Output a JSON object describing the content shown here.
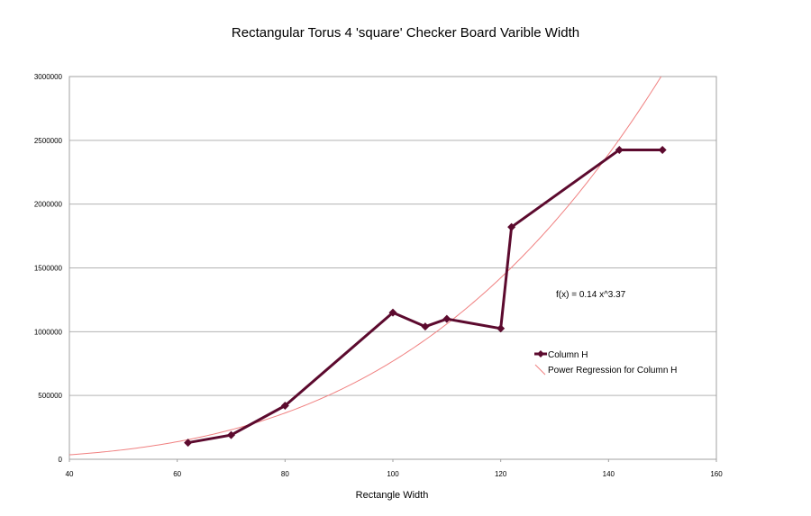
{
  "chart_data": {
    "type": "line",
    "title": "Rectangular Torus 4 'square' Checker Board Varible Width",
    "xlabel": "Rectangle Width",
    "ylabel": "",
    "xlim": [
      40,
      160
    ],
    "ylim": [
      0,
      3000000
    ],
    "x_ticks": [
      "40",
      "60",
      "80",
      "100",
      "120",
      "140",
      "160"
    ],
    "y_ticks": [
      "0",
      "500000",
      "1000000",
      "1500000",
      "2000000",
      "2500000",
      "3000000"
    ],
    "grid": "horizontal",
    "legend_position": "right",
    "annotation": "f(x) = 0.14 x^3.37",
    "series": [
      {
        "name": "Column H",
        "color": "#5c0a2e",
        "marker": "diamond",
        "points": [
          [
            62,
            130000
          ],
          [
            70,
            190000
          ],
          [
            80,
            420000
          ],
          [
            100,
            1150000
          ],
          [
            106,
            1040000
          ],
          [
            110,
            1100000
          ],
          [
            120,
            1025000
          ],
          [
            122,
            1820000
          ],
          [
            142,
            2425000
          ],
          [
            150,
            2425000
          ]
        ]
      },
      {
        "name": "Power Regression for Column H",
        "color": "#f08080",
        "type": "power",
        "coefficient": 0.14,
        "exponent": 3.37
      }
    ]
  }
}
